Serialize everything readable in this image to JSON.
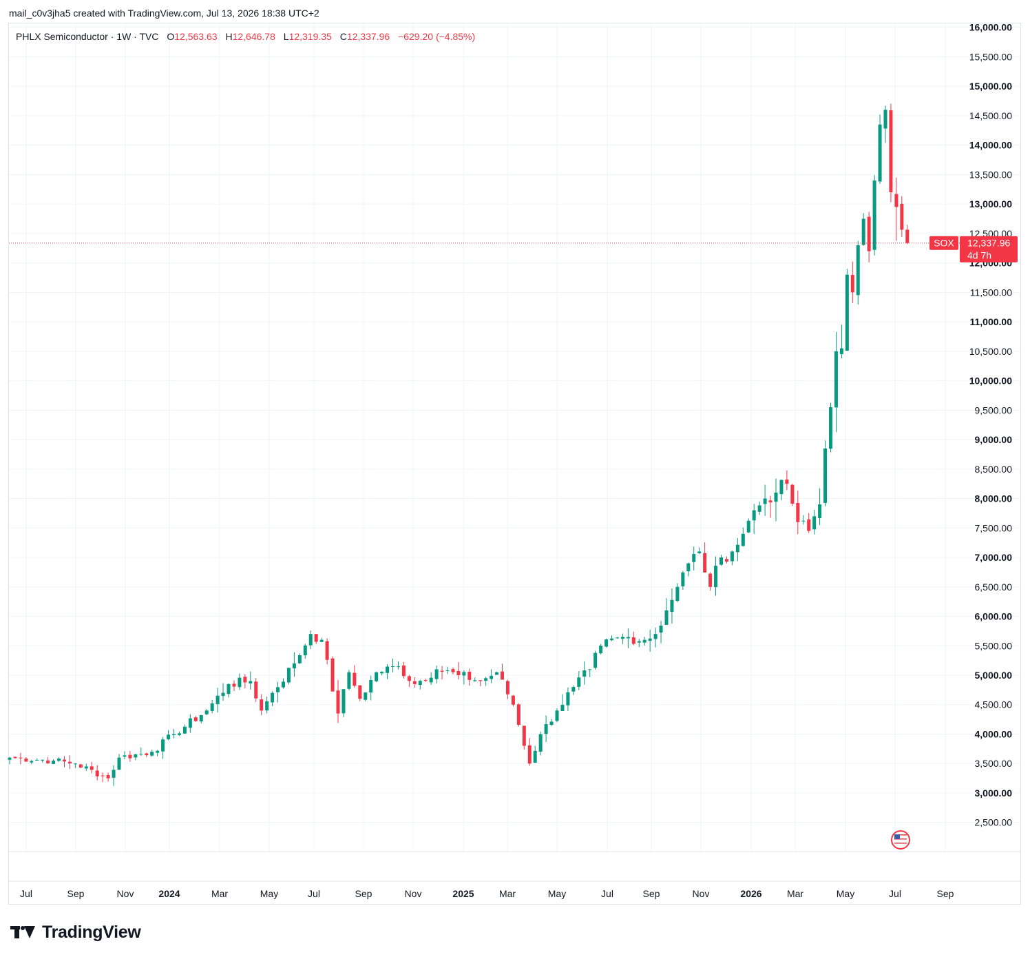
{
  "caption": "mail_c0v3jha5 created with TradingView.com, Jul 13, 2026 18:38 UTC+2",
  "legend": {
    "name": "PHLX Semiconductor · 1W · TVC",
    "o_label": "O",
    "o_value": "12,563.63",
    "h_label": "H",
    "h_value": "12,646.78",
    "l_label": "L",
    "l_value": "12,319.35",
    "c_label": "C",
    "c_value": "12,337.96",
    "change": "−629.20 (−4.85%)"
  },
  "price_tag": {
    "symbol": "SOX",
    "price": "12,337.96",
    "countdown": "4d 7h"
  },
  "colors": {
    "up": "#089981",
    "down": "#f23645",
    "grid": "#f0f3fa",
    "text": "#131722",
    "tag": "#f23645"
  },
  "icons": {
    "flag": "us-flag-icon"
  },
  "brand": {
    "name": "TradingView"
  },
  "chart_data": {
    "type": "candlestick",
    "interval": "1W",
    "current_price": 12337.96,
    "y_ticks": [
      2500,
      3000,
      3500,
      4000,
      4500,
      5000,
      5500,
      6000,
      6500,
      7000,
      7500,
      8000,
      8500,
      9000,
      9500,
      10000,
      10500,
      11000,
      11500,
      12000,
      12500,
      13000,
      13500,
      14000,
      14500,
      15000,
      15500,
      16000
    ],
    "y_tick_labels": [
      "2,500.00",
      "3,000.00",
      "3,500.00",
      "4,000.00",
      "4,500.00",
      "5,000.00",
      "5,500.00",
      "6,000.00",
      "6,500.00",
      "7,000.00",
      "7,500.00",
      "8,000.00",
      "8,500.00",
      "9,000.00",
      "9,500.00",
      "10,000.00",
      "10,500.00",
      "11,000.00",
      "11,500.00",
      "12,000.00",
      "12,500.00",
      "13,000.00",
      "13,500.00",
      "14,000.00",
      "14,500.00",
      "15,000.00",
      "15,500.00",
      "16,000.00"
    ],
    "ylim": [
      2100,
      16000
    ],
    "x_labels": [
      "Jul",
      "Sep",
      "Nov",
      "2024",
      "Mar",
      "May",
      "Jul",
      "Sep",
      "Nov",
      "2025",
      "Mar",
      "May",
      "Jul",
      "Sep",
      "Nov",
      "2026",
      "Mar",
      "May",
      "Jul",
      "Sep"
    ],
    "x_labels_bold": [
      "2024",
      "2025",
      "2026"
    ],
    "anchors": [
      {
        "t": 0,
        "c": 3600
      },
      {
        "t": 8,
        "c": 3550
      },
      {
        "t": 12,
        "c": 3500
      },
      {
        "t": 18,
        "c": 3250
      },
      {
        "t": 20,
        "c": 3600
      },
      {
        "t": 26,
        "c": 3700
      },
      {
        "t": 30,
        "c": 4000
      },
      {
        "t": 36,
        "c": 4400
      },
      {
        "t": 40,
        "c": 4850
      },
      {
        "t": 44,
        "c": 4900
      },
      {
        "t": 46,
        "c": 4400
      },
      {
        "t": 48,
        "c": 4700
      },
      {
        "t": 52,
        "c": 5200
      },
      {
        "t": 55,
        "c": 5700
      },
      {
        "t": 57,
        "c": 5600
      },
      {
        "t": 60,
        "c": 4350
      },
      {
        "t": 62,
        "c": 5050
      },
      {
        "t": 64,
        "c": 4600
      },
      {
        "t": 67,
        "c": 5050
      },
      {
        "t": 71,
        "c": 5150
      },
      {
        "t": 74,
        "c": 4850
      },
      {
        "t": 78,
        "c": 5100
      },
      {
        "t": 82,
        "c": 5000
      },
      {
        "t": 86,
        "c": 4900
      },
      {
        "t": 89,
        "c": 5050
      },
      {
        "t": 92,
        "c": 4500
      },
      {
        "t": 95,
        "c": 3500
      },
      {
        "t": 97,
        "c": 4000
      },
      {
        "t": 100,
        "c": 4400
      },
      {
        "t": 103,
        "c": 4800
      },
      {
        "t": 106,
        "c": 5100
      },
      {
        "t": 108,
        "c": 5500
      },
      {
        "t": 112,
        "c": 5650
      },
      {
        "t": 116,
        "c": 5600
      },
      {
        "t": 118,
        "c": 5700
      },
      {
        "t": 120,
        "c": 6100
      },
      {
        "t": 122,
        "c": 6500
      },
      {
        "t": 124,
        "c": 6900
      },
      {
        "t": 126,
        "c": 7100
      },
      {
        "t": 128,
        "c": 6500
      },
      {
        "t": 130,
        "c": 7000
      },
      {
        "t": 132,
        "c": 7100
      },
      {
        "t": 134,
        "c": 7400
      },
      {
        "t": 136,
        "c": 7800
      },
      {
        "t": 138,
        "c": 8000
      },
      {
        "t": 140,
        "c": 8100
      },
      {
        "t": 142,
        "c": 8250
      },
      {
        "t": 144,
        "c": 7600
      },
      {
        "t": 146,
        "c": 7450
      },
      {
        "t": 148,
        "c": 7900
      },
      {
        "t": 149,
        "c": 8850
      },
      {
        "t": 150,
        "c": 9550
      },
      {
        "t": 151,
        "c": 10500
      },
      {
        "t": 152,
        "c": 10550
      },
      {
        "t": 153,
        "c": 11800
      },
      {
        "t": 154,
        "c": 11500
      },
      {
        "t": 155,
        "c": 12300
      },
      {
        "t": 156,
        "c": 12750
      },
      {
        "t": 157,
        "c": 12200
      },
      {
        "t": 158,
        "c": 13400
      },
      {
        "t": 159,
        "c": 14350
      },
      {
        "t": 160,
        "c": 14600
      },
      {
        "t": 161,
        "c": 13200
      },
      {
        "t": 162,
        "c": 12950
      },
      {
        "t": 163,
        "c": 12564
      },
      {
        "t": 164,
        "c": 12338
      }
    ],
    "last_bar": {
      "open": 12563.63,
      "high": 12646.78,
      "low": 12319.35,
      "close": 12337.96
    }
  }
}
